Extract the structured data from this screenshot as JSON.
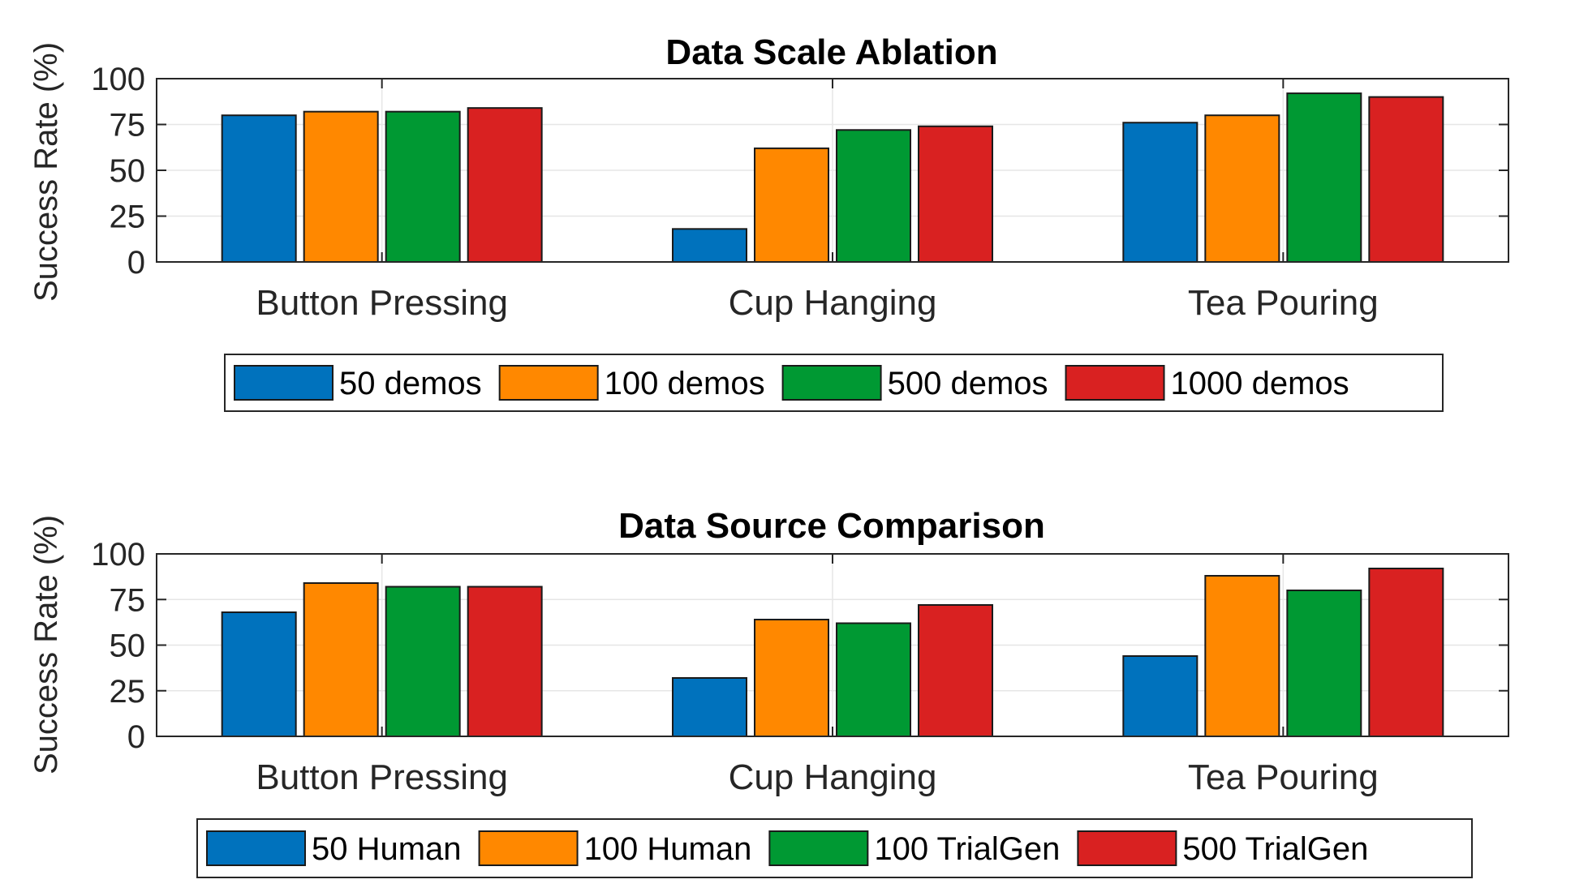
{
  "chart_data": [
    {
      "type": "bar",
      "title": "Data Scale Ablation",
      "ylabel": "Success Rate (%)",
      "xlabel": "",
      "ylim": [
        0,
        100
      ],
      "yticks": [
        0,
        25,
        50,
        75,
        100
      ],
      "grid": true,
      "legend_position": "bottom",
      "categories": [
        "Button Pressing",
        "Cup Hanging",
        "Tea Pouring"
      ],
      "series": [
        {
          "name": "50 demos",
          "color": "#0072BD",
          "values": [
            80,
            18,
            76
          ]
        },
        {
          "name": "100 demos",
          "color": "#FF8800",
          "values": [
            82,
            62,
            80
          ]
        },
        {
          "name": "500 demos",
          "color": "#009933",
          "values": [
            82,
            72,
            92
          ]
        },
        {
          "name": "1000 demos",
          "color": "#D92121",
          "values": [
            84,
            74,
            90
          ]
        }
      ]
    },
    {
      "type": "bar",
      "title": "Data Source Comparison",
      "ylabel": "Success Rate (%)",
      "xlabel": "",
      "ylim": [
        0,
        100
      ],
      "yticks": [
        0,
        25,
        50,
        75,
        100
      ],
      "grid": true,
      "legend_position": "bottom",
      "categories": [
        "Button Pressing",
        "Cup Hanging",
        "Tea Pouring"
      ],
      "series": [
        {
          "name": "50 Human",
          "color": "#0072BD",
          "values": [
            68,
            32,
            44
          ]
        },
        {
          "name": "100 Human",
          "color": "#FF8800",
          "values": [
            84,
            64,
            88
          ]
        },
        {
          "name": "100 TrialGen",
          "color": "#009933",
          "values": [
            82,
            62,
            80
          ]
        },
        {
          "name": "500 TrialGen",
          "color": "#D92121",
          "values": [
            82,
            72,
            92
          ]
        }
      ]
    }
  ]
}
